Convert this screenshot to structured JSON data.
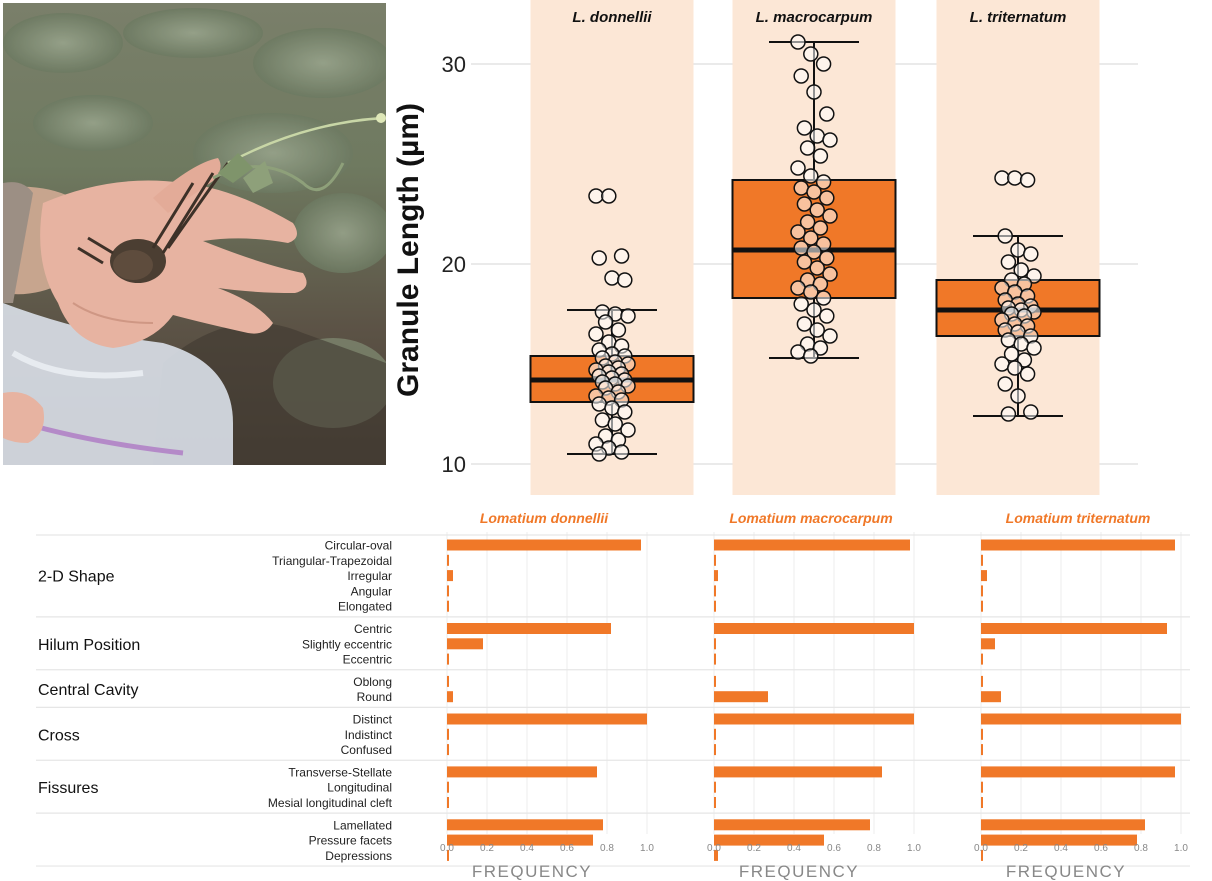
{
  "photo": {
    "description_icon": "hand-holding-root-photo"
  },
  "colors": {
    "orange": "#F07828",
    "peach": "#FCE7D6",
    "grid": "#E3E3E3",
    "text_dark": "#111111",
    "axis_grey": "#888888"
  },
  "chart_data": [
    {
      "type": "box",
      "ylabel": "Granule Length (µm)",
      "ylim": [
        9,
        33
      ],
      "yticks": [
        10,
        20,
        30
      ],
      "panels": [
        {
          "name": "L. donnellii",
          "stats": {
            "min": 10.5,
            "q1": 13.1,
            "median": 14.2,
            "q3": 15.4,
            "max": 17.7
          },
          "points": [
            23.4,
            23.4,
            20.4,
            20.3,
            19.3,
            19.2,
            17.6,
            17.5,
            17.4,
            17.1,
            16.7,
            16.5,
            16.1,
            15.9,
            15.7,
            15.5,
            15.4,
            15.3,
            15.1,
            15.0,
            14.9,
            14.8,
            14.7,
            14.6,
            14.5,
            14.4,
            14.3,
            14.2,
            14.1,
            14.0,
            13.9,
            13.8,
            13.6,
            13.4,
            13.3,
            13.2,
            13.0,
            12.8,
            12.6,
            12.2,
            12.0,
            11.7,
            11.4,
            11.2,
            11.0,
            10.8,
            10.6,
            10.5
          ]
        },
        {
          "name": "L. macrocarpum",
          "stats": {
            "min": 15.3,
            "q1": 18.3,
            "median": 20.7,
            "q3": 24.2,
            "max": 31.1
          },
          "points": [
            31.1,
            30.5,
            30.0,
            29.4,
            28.6,
            27.5,
            26.8,
            26.4,
            26.2,
            25.8,
            25.4,
            24.8,
            24.4,
            24.1,
            23.8,
            23.6,
            23.3,
            23.0,
            22.7,
            22.4,
            22.1,
            21.8,
            21.6,
            21.3,
            21.0,
            20.8,
            20.6,
            20.3,
            20.1,
            19.8,
            19.5,
            19.2,
            19.0,
            18.8,
            18.6,
            18.3,
            18.0,
            17.7,
            17.4,
            17.0,
            16.7,
            16.4,
            16.0,
            15.8,
            15.6,
            15.4
          ]
        },
        {
          "name": "L. triternatum",
          "stats": {
            "min": 12.4,
            "q1": 16.4,
            "median": 17.7,
            "q3": 19.2,
            "max": 21.4
          },
          "points": [
            24.3,
            24.3,
            24.2,
            21.4,
            20.7,
            20.5,
            20.1,
            19.7,
            19.4,
            19.2,
            19.0,
            18.8,
            18.6,
            18.4,
            18.2,
            18.0,
            17.9,
            17.8,
            17.7,
            17.6,
            17.5,
            17.4,
            17.2,
            17.0,
            16.9,
            16.7,
            16.6,
            16.4,
            16.2,
            16.0,
            15.8,
            15.5,
            15.2,
            15.0,
            14.8,
            14.5,
            14.0,
            13.4,
            12.6,
            12.5
          ]
        }
      ]
    },
    {
      "type": "bar",
      "xlabel": "FREQUENCY",
      "xlim": [
        0,
        1.0
      ],
      "xticks": [
        "0.0",
        "0.2",
        "0.4",
        "0.6",
        "0.8",
        "1.0"
      ],
      "panel_titles": [
        "Lomatium donnellii",
        "Lomatium macrocarpum",
        "Lomatium triternatum"
      ],
      "groups": [
        {
          "name": "2-D Shape",
          "rows": [
            {
              "label": "Circular-oval",
              "values": [
                0.97,
                0.98,
                0.97
              ]
            },
            {
              "label": "Triangular-Trapezoidal",
              "values": [
                0.0,
                0.0,
                0.0
              ]
            },
            {
              "label": "Irregular",
              "values": [
                0.03,
                0.02,
                0.03
              ]
            },
            {
              "label": "Angular",
              "values": [
                0.0,
                0.0,
                0.0
              ]
            },
            {
              "label": "Elongated",
              "values": [
                0.0,
                0.0,
                0.0
              ]
            }
          ]
        },
        {
          "name": "Hilum Position",
          "rows": [
            {
              "label": "Centric",
              "values": [
                0.82,
                1.0,
                0.93
              ]
            },
            {
              "label": "Slightly eccentric",
              "values": [
                0.18,
                0.0,
                0.07
              ]
            },
            {
              "label": "Eccentric",
              "values": [
                0.0,
                0.0,
                0.0
              ]
            }
          ]
        },
        {
          "name": "Central Cavity",
          "rows": [
            {
              "label": "Oblong",
              "values": [
                0.0,
                0.0,
                0.0
              ]
            },
            {
              "label": "Round",
              "values": [
                0.03,
                0.27,
                0.1
              ]
            }
          ]
        },
        {
          "name": "Cross",
          "rows": [
            {
              "label": "Distinct",
              "values": [
                1.0,
                1.0,
                1.0
              ]
            },
            {
              "label": "Indistinct",
              "values": [
                0.0,
                0.0,
                0.0
              ]
            },
            {
              "label": "Confused",
              "values": [
                0.0,
                0.0,
                0.0
              ]
            }
          ]
        },
        {
          "name": "Fissures",
          "rows": [
            {
              "label": "Transverse-Stellate",
              "values": [
                0.75,
                0.84,
                0.97
              ]
            },
            {
              "label": "Longitudinal",
              "values": [
                0.0,
                0.0,
                0.0
              ]
            },
            {
              "label": "Mesial longitudinal cleft",
              "values": [
                0.0,
                0.0,
                0.0
              ]
            }
          ]
        },
        {
          "name": "",
          "rows": [
            {
              "label": "Lamellated",
              "values": [
                0.78,
                0.78,
                0.82
              ]
            },
            {
              "label": "Pressure facets",
              "values": [
                0.73,
                0.55,
                0.78
              ]
            },
            {
              "label": "Depressions",
              "values": [
                0.0,
                0.02,
                0.0
              ]
            }
          ]
        }
      ]
    }
  ]
}
